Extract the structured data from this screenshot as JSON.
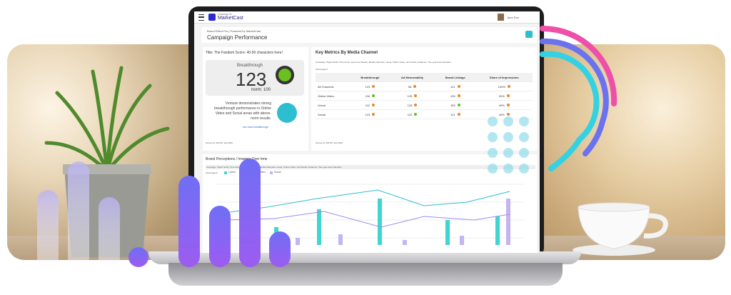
{
  "header": {
    "powered": "POWERED BY",
    "brand": "MarketCast",
    "user": "Jane Doe"
  },
  "page": {
    "breadcrumb": "Brand Effect Pro | Powered by MarketCast",
    "title": "Campaign Performance"
  },
  "score_card": {
    "title": "Title: The Fandom Score: 40-50 characters here!",
    "metric": "Breakthrough",
    "value": "123",
    "norm": "norm: 100",
    "insight": "Venture demonstrates strong breakthrough performance in Online Video and Social areas with above-norm results.",
    "link": "see more breakthrough",
    "footer": "Survey Id: 29178 | July 2023"
  },
  "metrics": {
    "title": "Key Metrics By Media Channel",
    "filters": "Campaign: Taylor Swift  |  Time frame: Last Four Weeks  |  Media Channels: Linear, Online Video, and Social  |  Audience: Two-year Auto Intenders",
    "legend_label": "chart legend",
    "columns": [
      "Breakthrough",
      "Ad Memorability",
      "Brand Linkage",
      "Share of Impressions"
    ],
    "rows": [
      [
        "All Channels",
        "123",
        "98",
        "121",
        "100%"
      ],
      [
        "Online Video",
        "116",
        "125",
        "125",
        "20%"
      ],
      [
        "Linear",
        "112",
        "125",
        "109",
        "40%"
      ],
      [
        "Social",
        "123",
        "110",
        "121",
        "40%"
      ]
    ],
    "footer": "Survey Id: 29178 | July 2023"
  },
  "perceptions": {
    "title": "Brand Perceptions / Imagery Over time",
    "filters": "Campaign: Taylor Swift  |  Time frame: Last Four Weeks  |  Media Channels: Linear, Online Video, and Social  |  Audience: Two-year Auto Intenders",
    "legend_label": "chart legend",
    "legend": [
      "Linear",
      "Online Video",
      "Social"
    ]
  }
}
